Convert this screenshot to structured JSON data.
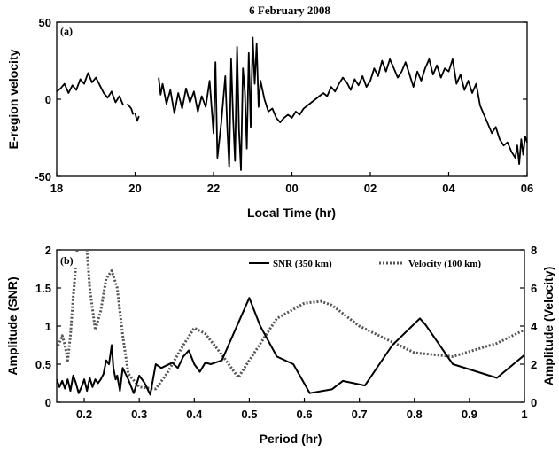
{
  "figure_title": "6 February 2008",
  "chart_data": [
    {
      "panel": "(a)",
      "type": "line",
      "xlabel": "Local Time (hr)",
      "ylabel": "E-region velocity",
      "xlim": [
        18,
        30
      ],
      "ylim": [
        -50,
        50
      ],
      "x_ticks": [
        18,
        20,
        22,
        24,
        26,
        28,
        30
      ],
      "x_tick_labels": [
        "18",
        "20",
        "22",
        "00",
        "02",
        "04",
        "06"
      ],
      "y_ticks": [
        -50,
        0,
        50
      ],
      "y_tick_labels": [
        "-50",
        "0",
        "50"
      ],
      "series": [
        {
          "color": "#000000",
          "segments": [
            [
              [
                18.0,
                5
              ],
              [
                18.1,
                7
              ],
              [
                18.2,
                10
              ],
              [
                18.3,
                4
              ],
              [
                18.4,
                9
              ],
              [
                18.5,
                6
              ],
              [
                18.6,
                13
              ],
              [
                18.7,
                10
              ],
              [
                18.8,
                17
              ],
              [
                18.9,
                11
              ],
              [
                19.0,
                14
              ],
              [
                19.1,
                9
              ],
              [
                19.2,
                4
              ],
              [
                19.3,
                1
              ],
              [
                19.4,
                5
              ],
              [
                19.5,
                -2
              ],
              [
                19.6,
                2
              ],
              [
                19.7,
                -4
              ]
            ],
            [
              [
                19.8,
                -3
              ],
              [
                19.9,
                -6
              ],
              [
                19.95,
                -10
              ]
            ],
            [
              [
                20.0,
                -9
              ],
              [
                20.05,
                -14
              ],
              [
                20.1,
                -11
              ]
            ],
            [
              [
                20.6,
                14
              ],
              [
                20.65,
                3
              ],
              [
                20.7,
                10
              ],
              [
                20.8,
                -3
              ],
              [
                20.9,
                6
              ],
              [
                21.0,
                -9
              ],
              [
                21.1,
                4
              ],
              [
                21.2,
                -6
              ],
              [
                21.3,
                7
              ],
              [
                21.4,
                -2
              ],
              [
                21.5,
                5
              ],
              [
                21.6,
                -8
              ],
              [
                21.7,
                2
              ],
              [
                21.8,
                -5
              ],
              [
                21.9,
                12
              ],
              [
                22.0,
                -22
              ],
              [
                22.05,
                24
              ],
              [
                22.1,
                -38
              ],
              [
                22.2,
                -15
              ],
              [
                22.3,
                15
              ],
              [
                22.35,
                -18
              ],
              [
                22.4,
                -44
              ],
              [
                22.45,
                26
              ],
              [
                22.5,
                -12
              ],
              [
                22.55,
                -40
              ],
              [
                22.6,
                34
              ],
              [
                22.65,
                -20
              ],
              [
                22.7,
                -46
              ],
              [
                22.75,
                20
              ],
              [
                22.8,
                5
              ],
              [
                22.85,
                -32
              ],
              [
                22.9,
                30
              ],
              [
                22.95,
                -18
              ],
              [
                23.0,
                40
              ],
              [
                23.05,
                10
              ],
              [
                23.1,
                36
              ],
              [
                23.15,
                -5
              ],
              [
                23.2,
                12
              ],
              [
                23.3,
                0
              ],
              [
                23.4,
                -8
              ],
              [
                23.5,
                -6
              ],
              [
                23.6,
                -12
              ],
              [
                23.7,
                -15
              ],
              [
                23.8,
                -12
              ],
              [
                23.9,
                -10
              ],
              [
                24.0,
                -12
              ],
              [
                24.1,
                -8
              ],
              [
                24.2,
                -10
              ],
              [
                24.3,
                -6
              ],
              [
                24.4,
                -4
              ],
              [
                24.5,
                -2
              ],
              [
                24.6,
                0
              ],
              [
                24.7,
                2
              ],
              [
                24.8,
                4
              ],
              [
                24.9,
                2
              ],
              [
                25.0,
                8
              ],
              [
                25.1,
                5
              ],
              [
                25.2,
                10
              ],
              [
                25.3,
                14
              ],
              [
                25.4,
                11
              ],
              [
                25.5,
                6
              ],
              [
                25.6,
                13
              ],
              [
                25.7,
                9
              ],
              [
                25.8,
                15
              ],
              [
                25.9,
                8
              ],
              [
                26.0,
                12
              ],
              [
                26.1,
                20
              ],
              [
                26.2,
                15
              ],
              [
                26.3,
                25
              ],
              [
                26.4,
                18
              ],
              [
                26.5,
                26
              ],
              [
                26.6,
                20
              ],
              [
                26.7,
                14
              ],
              [
                26.8,
                18
              ],
              [
                26.9,
                24
              ],
              [
                27.0,
                16
              ],
              [
                27.1,
                8
              ],
              [
                27.2,
                18
              ],
              [
                27.3,
                12
              ],
              [
                27.4,
                20
              ],
              [
                27.5,
                26
              ],
              [
                27.6,
                16
              ],
              [
                27.7,
                22
              ],
              [
                27.8,
                14
              ],
              [
                27.9,
                20
              ],
              [
                28.0,
                18
              ],
              [
                28.1,
                26
              ],
              [
                28.2,
                10
              ],
              [
                28.3,
                16
              ],
              [
                28.4,
                6
              ],
              [
                28.5,
                12
              ],
              [
                28.6,
                4
              ],
              [
                28.7,
                10
              ],
              [
                28.8,
                -4
              ],
              [
                28.9,
                -10
              ],
              [
                29.0,
                -16
              ],
              [
                29.1,
                -22
              ],
              [
                29.2,
                -18
              ],
              [
                29.3,
                -26
              ],
              [
                29.4,
                -30
              ],
              [
                29.5,
                -28
              ],
              [
                29.6,
                -34
              ],
              [
                29.7,
                -38
              ],
              [
                29.75,
                -30
              ],
              [
                29.8,
                -42
              ],
              [
                29.85,
                -26
              ],
              [
                29.9,
                -36
              ],
              [
                29.95,
                -24
              ],
              [
                30.0,
                -28
              ]
            ]
          ]
        }
      ]
    },
    {
      "panel": "(b)",
      "type": "line",
      "xlabel": "Period (hr)",
      "ylabel_left": "Amplitude (SNR)",
      "ylabel_right": "Amplitude (Velocity)",
      "xlim": [
        0.15,
        1.0
      ],
      "ylim_left": [
        0,
        2
      ],
      "ylim_right": [
        0,
        8
      ],
      "x_ticks": [
        0.2,
        0.3,
        0.4,
        0.5,
        0.6,
        0.7,
        0.8,
        0.9,
        1.0
      ],
      "x_tick_labels": [
        "0.2",
        "0.3",
        "0.4",
        "0.5",
        "0.6",
        "0.7",
        "0.8",
        "0.9",
        "1"
      ],
      "y_ticks_left": [
        0,
        0.5,
        1,
        1.5,
        2
      ],
      "y_tick_labels_left": [
        "0",
        "0.5",
        "1",
        "1.5",
        "2"
      ],
      "y_ticks_right": [
        0,
        2,
        4,
        6,
        8
      ],
      "y_tick_labels_right": [
        "0",
        "2",
        "4",
        "6",
        "8"
      ],
      "legend_location": "top-right",
      "series": [
        {
          "name": "SNR (350 km)",
          "axis": "left",
          "color": "#000000",
          "style": "solid",
          "x": [
            0.15,
            0.155,
            0.16,
            0.165,
            0.17,
            0.175,
            0.18,
            0.185,
            0.19,
            0.195,
            0.2,
            0.205,
            0.21,
            0.215,
            0.22,
            0.225,
            0.23,
            0.235,
            0.24,
            0.245,
            0.25,
            0.253,
            0.257,
            0.26,
            0.265,
            0.27,
            0.28,
            0.29,
            0.3,
            0.31,
            0.32,
            0.33,
            0.34,
            0.36,
            0.37,
            0.38,
            0.39,
            0.4,
            0.41,
            0.42,
            0.43,
            0.45,
            0.5,
            0.52,
            0.55,
            0.58,
            0.61,
            0.65,
            0.67,
            0.71,
            0.76,
            0.81,
            0.82,
            0.87,
            0.95,
            1.0
          ],
          "values": [
            0.3,
            0.2,
            0.28,
            0.18,
            0.3,
            0.15,
            0.35,
            0.25,
            0.12,
            0.2,
            0.3,
            0.15,
            0.32,
            0.2,
            0.3,
            0.25,
            0.3,
            0.37,
            0.55,
            0.5,
            0.75,
            0.45,
            0.3,
            0.35,
            0.15,
            0.45,
            0.3,
            0.12,
            0.35,
            0.25,
            0.1,
            0.5,
            0.45,
            0.52,
            0.45,
            0.6,
            0.68,
            0.5,
            0.4,
            0.52,
            0.5,
            0.55,
            1.37,
            1.0,
            0.6,
            0.5,
            0.12,
            0.17,
            0.28,
            0.22,
            0.75,
            1.1,
            1.02,
            0.5,
            0.32,
            0.62
          ]
        },
        {
          "name": "Velocity (100 km)",
          "axis": "right",
          "color": "#555555",
          "style": "dotted",
          "x": [
            0.15,
            0.16,
            0.165,
            0.17,
            0.175,
            0.18,
            0.19,
            0.2,
            0.205,
            0.21,
            0.22,
            0.23,
            0.24,
            0.25,
            0.26,
            0.27,
            0.28,
            0.3,
            0.33,
            0.35,
            0.38,
            0.4,
            0.42,
            0.45,
            0.48,
            0.5,
            0.55,
            0.6,
            0.63,
            0.65,
            0.7,
            0.8,
            0.87,
            0.95,
            1.0
          ],
          "values": [
            2.8,
            3.5,
            3.0,
            2.2,
            3.5,
            5.5,
            9.0,
            9.5,
            8.0,
            6.0,
            3.8,
            4.8,
            6.5,
            6.9,
            6.0,
            3.5,
            1.5,
            0.8,
            0.7,
            1.5,
            3.0,
            3.9,
            3.6,
            2.5,
            1.3,
            2.2,
            4.4,
            5.2,
            5.3,
            5.1,
            4.0,
            2.6,
            2.4,
            3.1,
            3.8
          ]
        }
      ]
    }
  ]
}
